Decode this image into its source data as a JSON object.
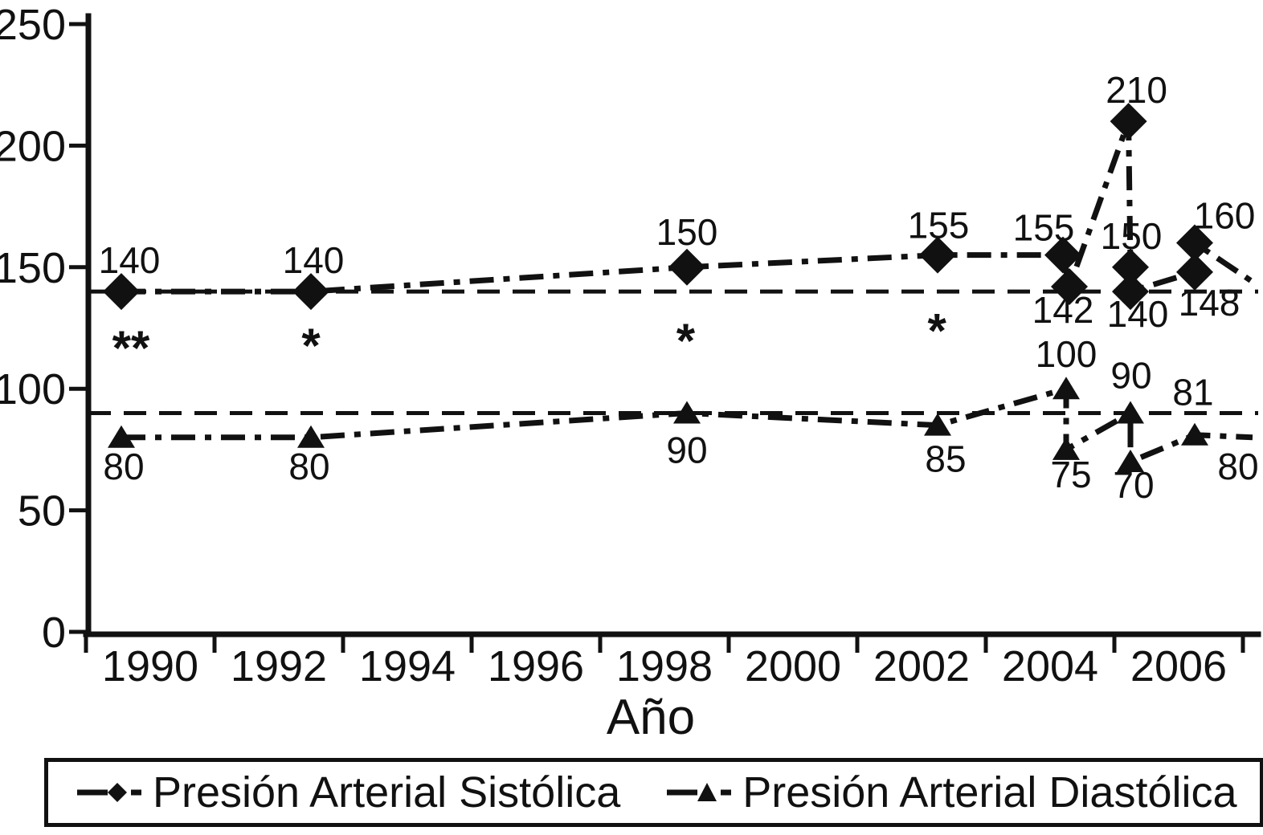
{
  "chart_data": {
    "type": "line",
    "title": "",
    "xlabel": "Año",
    "ylabel": "",
    "x_tick_labels": [
      "1990",
      "1992",
      "1994",
      "1996",
      "1998",
      "2000",
      "2002",
      "2004",
      "2006"
    ],
    "y_tick_values": [
      0,
      50,
      100,
      150,
      200,
      250
    ],
    "x_range": [
      1989,
      2007.3
    ],
    "ylim": [
      0,
      250
    ],
    "grid": false,
    "legend_position": "bottom",
    "reference_lines": [
      {
        "value": 140,
        "style": "dashed"
      },
      {
        "value": 90,
        "style": "dashed"
      }
    ],
    "series": [
      {
        "name": "Presión Arterial Sistólica",
        "marker": "diamond",
        "points": [
          {
            "x": 1989.55,
            "y": 140,
            "label": "140",
            "dx": 10,
            "dy": -23
          },
          {
            "x": 1992.5,
            "y": 140,
            "label": "140",
            "dx": 3,
            "dy": -23
          },
          {
            "x": 1998.35,
            "y": 150,
            "label": "150",
            "dx": 0,
            "dy": -28
          },
          {
            "x": 2002.25,
            "y": 155,
            "label": "155",
            "dx": 1,
            "dy": -21
          },
          {
            "x": 2004.2,
            "y": 155,
            "label": "155",
            "dx": -24,
            "dy": -18
          },
          {
            "x": 2004.3,
            "y": 142,
            "label": "142",
            "dx": -8,
            "dy": 45
          },
          {
            "x": 2005.22,
            "y": 210,
            "label": "210",
            "dx": 10,
            "dy": -23
          },
          {
            "x": 2005.25,
            "y": 150,
            "label": "150",
            "dx": 1,
            "dy": -23
          },
          {
            "x": 2005.25,
            "y": 140,
            "label": "140",
            "dx": 9,
            "dy": 44
          },
          {
            "x": 2006.25,
            "y": 148,
            "label": "148",
            "dx": 18,
            "dy": 54
          },
          {
            "x": 2006.25,
            "y": 160,
            "label": "160",
            "dx": 37,
            "dy": -18
          },
          {
            "x": 2007.15,
            "y": 144,
            "label": "",
            "marker": false
          }
        ]
      },
      {
        "name": "Presión Arterial Diastólica",
        "marker": "triangle",
        "points": [
          {
            "x": 1989.55,
            "y": 80,
            "label": "80",
            "dx": 3,
            "dy": 52
          },
          {
            "x": 1992.5,
            "y": 80,
            "label": "80",
            "dx": -2,
            "dy": 52
          },
          {
            "x": 1998.35,
            "y": 90,
            "label": "90",
            "dx": 0,
            "dy": 62
          },
          {
            "x": 2002.25,
            "y": 85,
            "label": "85",
            "dx": 10,
            "dy": 58
          },
          {
            "x": 2004.25,
            "y": 100,
            "label": "100",
            "dx": 0,
            "dy": -27
          },
          {
            "x": 2004.25,
            "y": 75,
            "label": "75",
            "dx": 6,
            "dy": 47
          },
          {
            "x": 2005.25,
            "y": 90,
            "label": "90",
            "dx": 1,
            "dy": -31
          },
          {
            "x": 2005.25,
            "y": 70,
            "label": "70",
            "dx": 4,
            "dy": 45
          },
          {
            "x": 2006.25,
            "y": 81,
            "label": "81",
            "dx": -2,
            "dy": -37
          },
          {
            "x": 2007.15,
            "y": 80,
            "label": "80",
            "dx": -18,
            "dy": 52,
            "marker": false
          }
        ]
      }
    ],
    "annotations": [
      {
        "x": 1989.7,
        "y": 110,
        "text": "**"
      },
      {
        "x": 1992.5,
        "y": 111,
        "text": "*"
      },
      {
        "x": 1998.33,
        "y": 113,
        "text": "*"
      },
      {
        "x": 2002.24,
        "y": 117,
        "text": "*"
      }
    ]
  },
  "legend": {
    "items": [
      {
        "label": "Presión Arterial Sistólica",
        "marker": "diamond"
      },
      {
        "label": "Presión Arterial Diastólica",
        "marker": "triangle"
      }
    ]
  },
  "colors": {
    "ink": "#111111",
    "background": "#ffffff"
  }
}
